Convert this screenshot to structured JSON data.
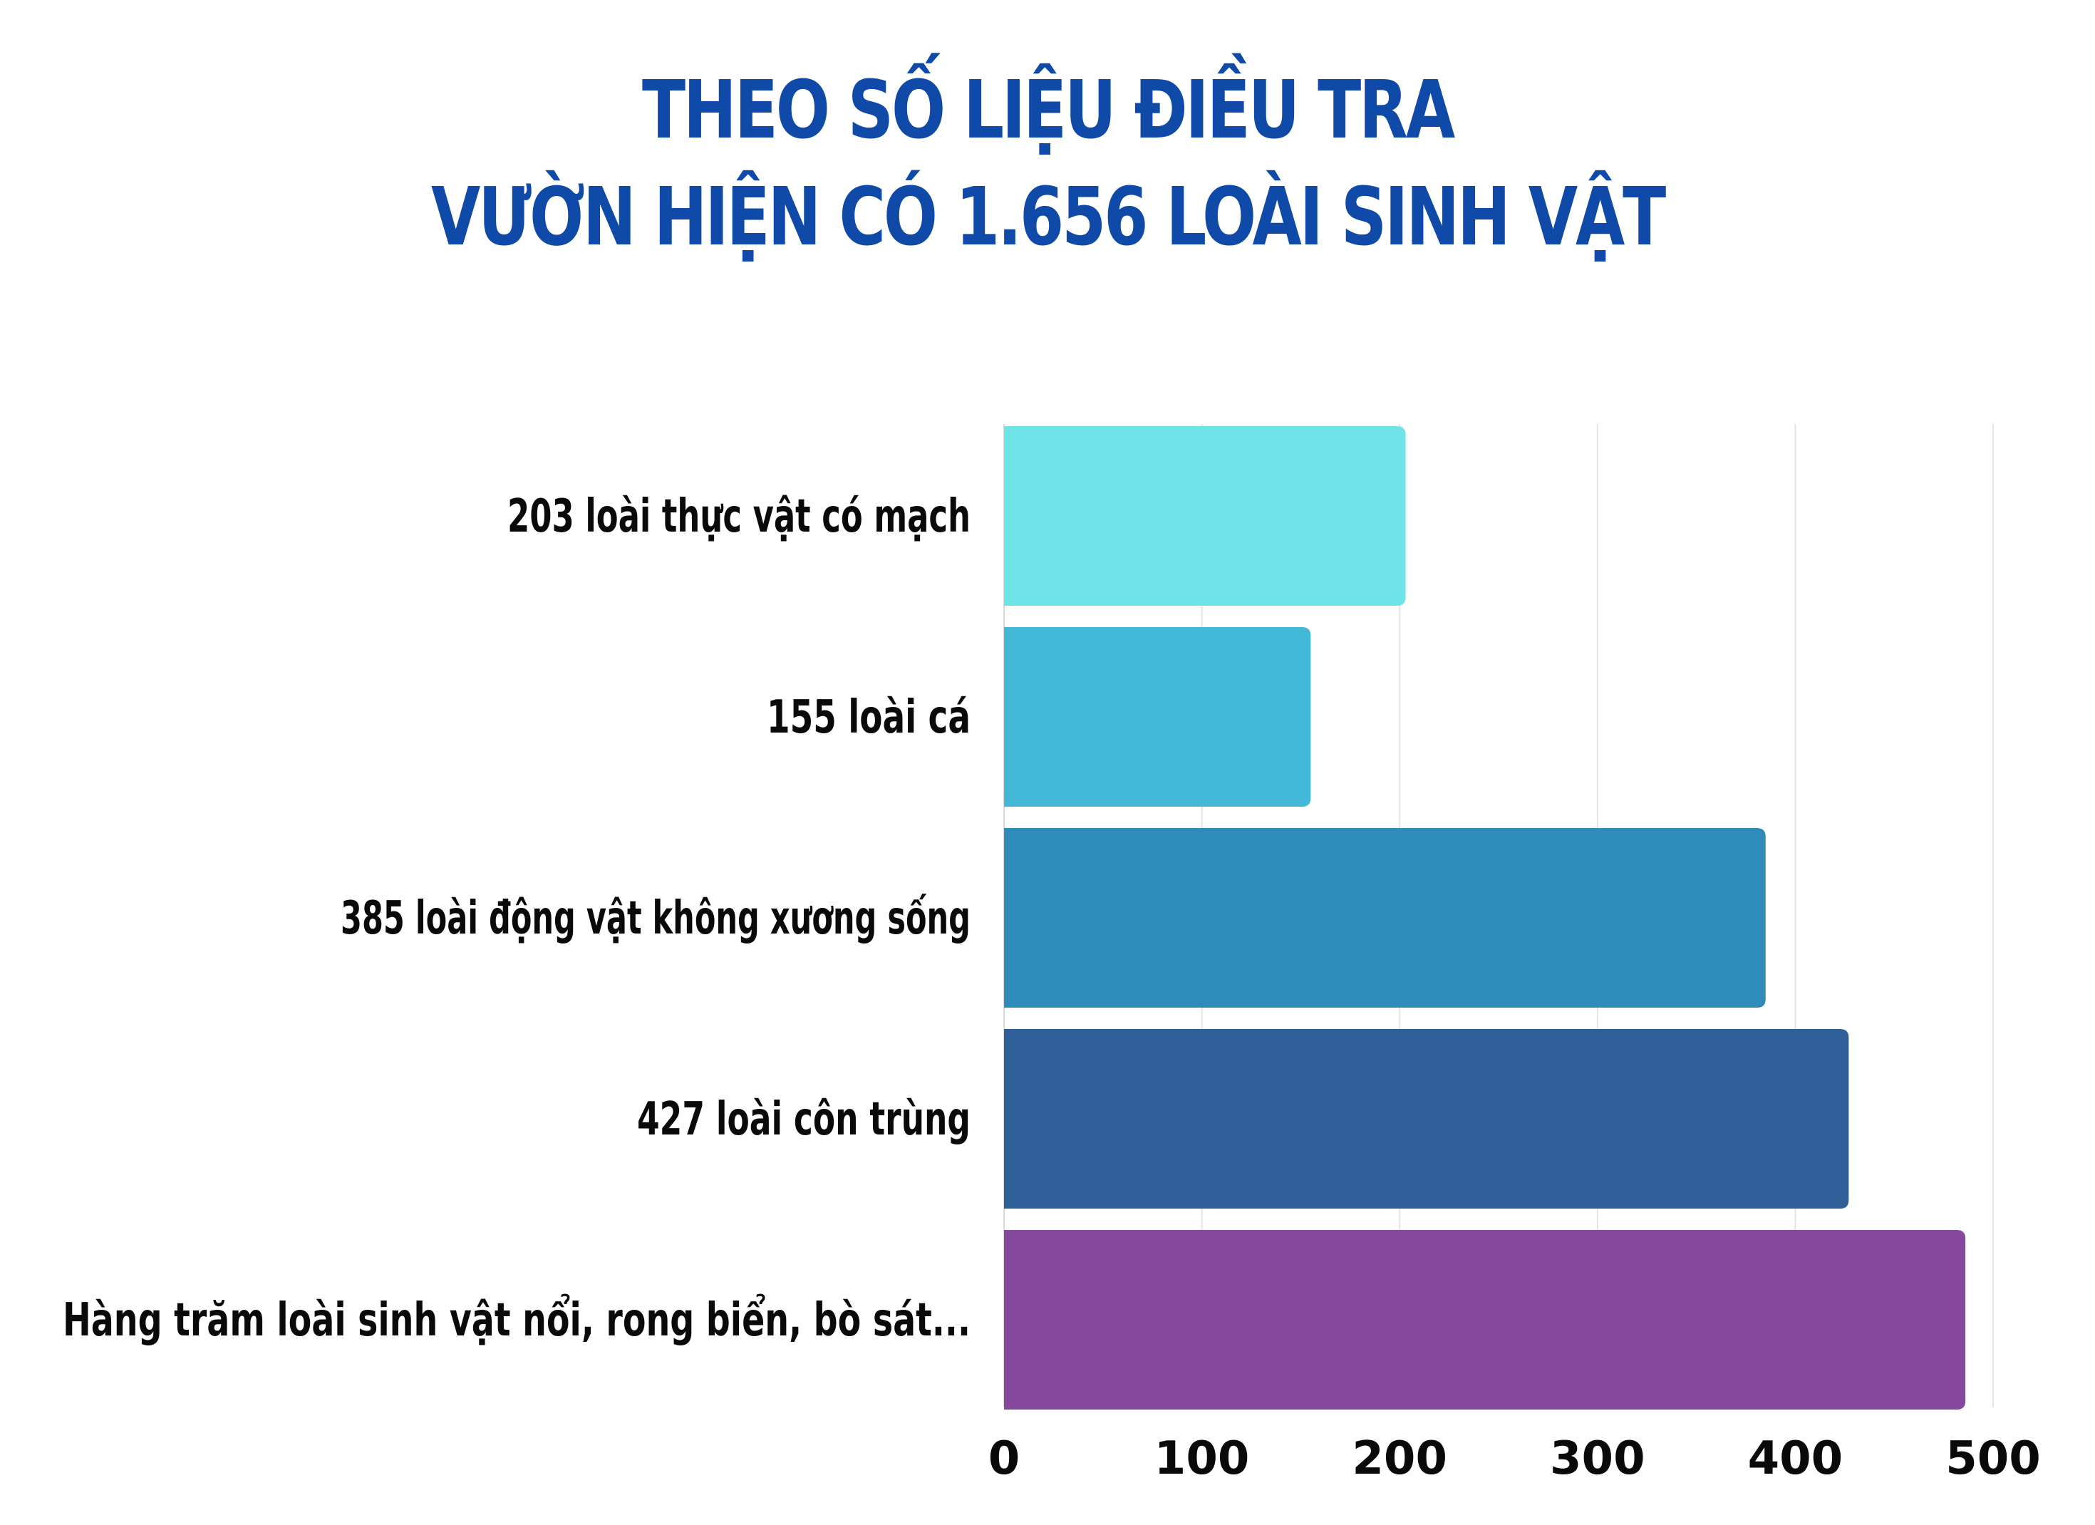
{
  "chart_data": {
    "type": "bar",
    "orientation": "horizontal",
    "title_lines": [
      "THEO SỐ LIỆU ĐIỀU TRA",
      "VƯỜN HIỆN CÓ 1.656 LOÀI SINH VẬT"
    ],
    "categories": [
      "203 loài thực vật có mạch",
      "155 loài cá",
      "385 loài động vật không xương sống",
      "427 loài côn trùng",
      "Hàng trăm loài sinh vật nổi, rong biển, bò sát..."
    ],
    "values": [
      203,
      155,
      385,
      427,
      486
    ],
    "colors": [
      "#6ee3e8",
      "#43b7d6",
      "#2e8bba",
      "#2f5f99",
      "#86489c"
    ],
    "xlim": [
      0,
      500
    ],
    "xticks": [
      "0",
      "100",
      "200",
      "300",
      "400",
      "500"
    ],
    "grid": true,
    "xlabel": "",
    "ylabel": ""
  }
}
